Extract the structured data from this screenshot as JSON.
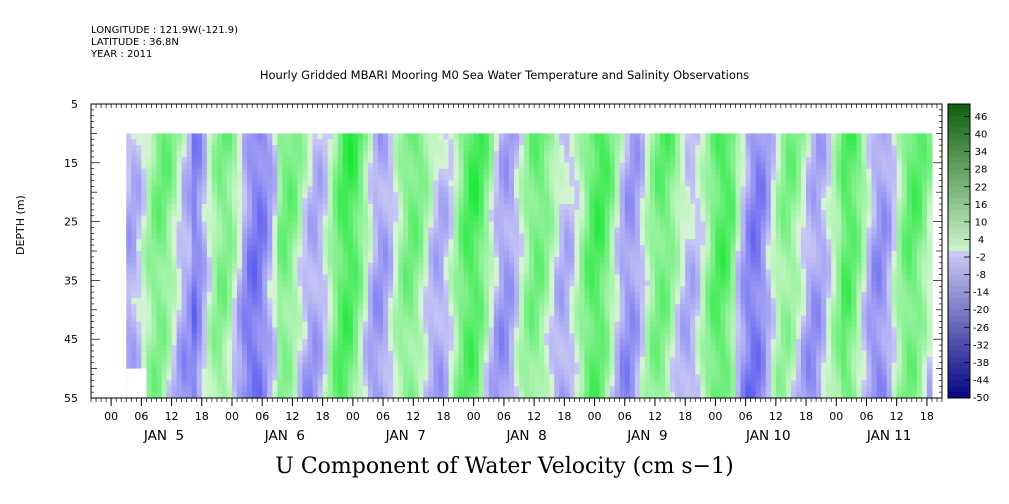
{
  "header": {
    "longitude": "LONGITUDE : 121.9W(-121.9)",
    "latitude": "LATITUDE : 36.8N",
    "year": "YEAR : 2011"
  },
  "chart_data": {
    "type": "heatmap",
    "title": "Hourly Gridded MBARI Mooring M0 Sea Water Temperature and Salinity Observations",
    "xlabel": "U Component of Water Velocity (cm s−1)",
    "ylabel": "DEPTH (m)",
    "ylim": [
      55,
      5
    ],
    "yticks": [
      5,
      15,
      25,
      35,
      45,
      55
    ],
    "xlim": [
      "JAN 4 20:00",
      "JAN 11 21:00"
    ],
    "x_hour_ticks": [
      "00",
      "06",
      "12",
      "18",
      "00",
      "06",
      "12",
      "18",
      "00",
      "06",
      "12",
      "18",
      "00",
      "06",
      "12",
      "18",
      "00",
      "06",
      "12",
      "18",
      "00",
      "06",
      "12",
      "18",
      "00",
      "06",
      "12",
      "18"
    ],
    "x_day_labels": [
      "JAN  5",
      "JAN  6",
      "JAN  7",
      "JAN  8",
      "JAN  9",
      "JAN 10",
      "JAN 11"
    ],
    "colorbar": {
      "labels": [
        "46",
        "40",
        "34",
        "28",
        "22",
        "16",
        "10",
        "4",
        "-2",
        "-8",
        "-14",
        "-20",
        "-26",
        "-32",
        "-38",
        "-44",
        "-50"
      ],
      "range": [
        -50,
        50
      ]
    },
    "data_extent": {
      "depth_top": 10,
      "depth_bottom": 55,
      "start": "JAN 5 03:00",
      "end": "JAN 11 19:00"
    },
    "dominant_pattern": "alternating bands of positive (green, ~0 to 25) and negative (blue, ~0 to -20) velocity with semidiurnal period"
  }
}
